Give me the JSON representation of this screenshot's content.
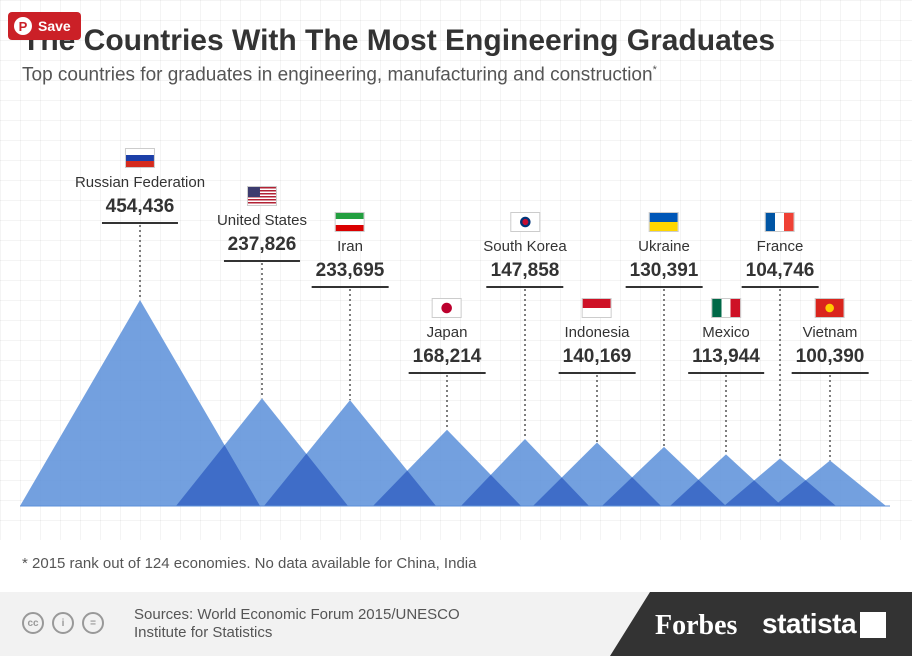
{
  "save_button": {
    "label": "Save",
    "icon": "pinterest-icon"
  },
  "title": "The Countries With The Most Engineering Graduates",
  "subtitle": "Top countries for graduates in engineering, manufacturing and construction",
  "subtitle_mark": "*",
  "chart_data": {
    "type": "area",
    "categories": [
      "Russian Federation",
      "United States",
      "Iran",
      "Japan",
      "South Korea",
      "Indonesia",
      "Ukraine",
      "Mexico",
      "France",
      "Vietnam"
    ],
    "values": [
      454436,
      237826,
      233695,
      168214,
      147858,
      140169,
      130391,
      113944,
      104746,
      100390
    ],
    "value_labels": [
      "454,436",
      "237,826",
      "233,695",
      "168,214",
      "147,858",
      "140,169",
      "130,391",
      "113,944",
      "104,746",
      "100,390"
    ],
    "ylim": [
      0,
      454436
    ],
    "grid": true,
    "colors": {
      "triangle": "#5b8fd9",
      "overlap": "#3a66c4"
    },
    "flags": [
      "russia",
      "usa",
      "iran",
      "japan",
      "south-korea",
      "indonesia",
      "ukraine",
      "mexico",
      "france",
      "vietnam"
    ]
  },
  "footnote": "* 2015 rank out of 124 economies. No data available for China, India",
  "sources": [
    "Sources: World Economic Forum 2015/UNESCO",
    "Institute for Statistics"
  ],
  "brands": {
    "forbes": "Forbes",
    "statista": "statista"
  },
  "license_icons": [
    "cc-icon",
    "by-icon",
    "nd-icon"
  ]
}
